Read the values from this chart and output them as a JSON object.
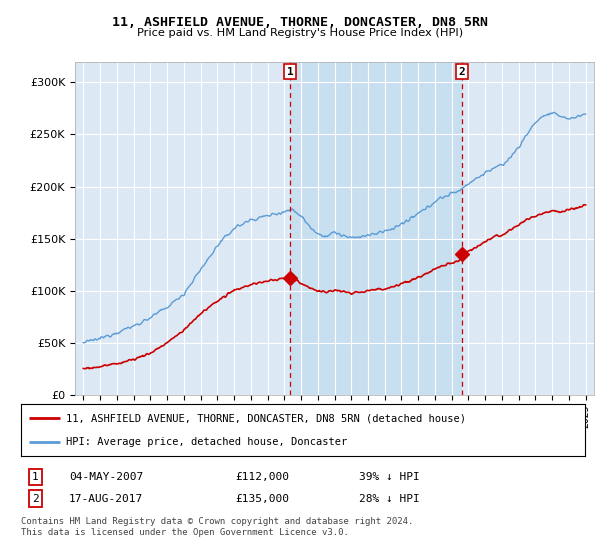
{
  "title": "11, ASHFIELD AVENUE, THORNE, DONCASTER, DN8 5RN",
  "subtitle": "Price paid vs. HM Land Registry's House Price Index (HPI)",
  "bg_color": "#dce9f5",
  "shaded_bg_color": "#c8dff0",
  "sale1_date": 2007.34,
  "sale1_price": 112000,
  "sale1_label": "1",
  "sale1_display": "04-MAY-2007",
  "sale1_pct": "39% ↓ HPI",
  "sale2_date": 2017.63,
  "sale2_price": 135000,
  "sale2_label": "2",
  "sale2_display": "17-AUG-2017",
  "sale2_pct": "28% ↓ HPI",
  "hpi_color": "#5b9bd5",
  "sale_color": "#cc0000",
  "marker_color": "#cc0000",
  "vline_color": "#cc0000",
  "ylim_min": 0,
  "ylim_max": 320000,
  "xlim_min": 1994.5,
  "xlim_max": 2025.5,
  "legend_sale_label": "11, ASHFIELD AVENUE, THORNE, DONCASTER, DN8 5RN (detached house)",
  "legend_hpi_label": "HPI: Average price, detached house, Doncaster",
  "footer": "Contains HM Land Registry data © Crown copyright and database right 2024.\nThis data is licensed under the Open Government Licence v3.0."
}
